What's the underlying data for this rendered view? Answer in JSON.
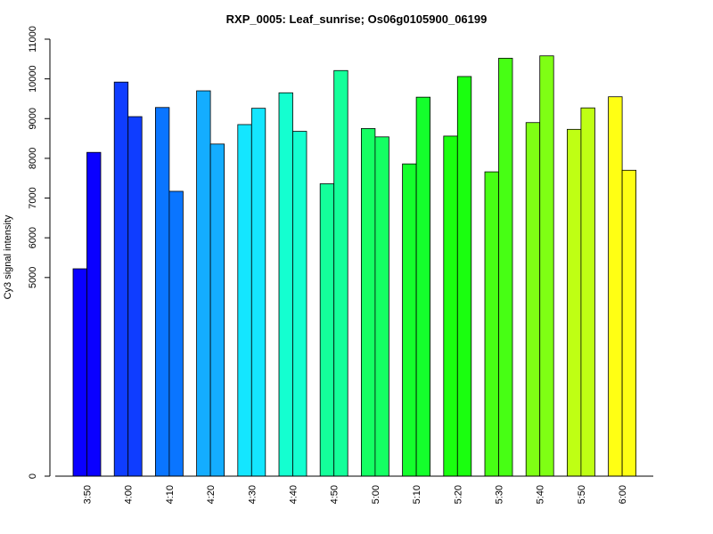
{
  "chart_data": {
    "type": "bar",
    "title": "RXP_0005: Leaf_sunrise; Os06g0105900_06199",
    "xlabel": "",
    "ylabel": "Cy3 signal intensity",
    "ylim": [
      0,
      11000
    ],
    "yticks": [
      0,
      5000,
      6000,
      7000,
      8000,
      9000,
      10000,
      11000
    ],
    "grid": false,
    "legend": "none",
    "categories": [
      "3:50",
      "4:00",
      "4:10",
      "4:20",
      "4:30",
      "4:40",
      "4:50",
      "5:00",
      "5:10",
      "5:20",
      "5:30",
      "5:40",
      "5:50",
      "6:00"
    ],
    "colors": [
      "#0A00FF",
      "#0F3DFF",
      "#0A75FF",
      "#14ADFF",
      "#14E6FF",
      "#14FFD0",
      "#14FF9A",
      "#14FF63",
      "#14FF2C",
      "#1AFF0F",
      "#47FF14",
      "#7FFF14",
      "#BFFF14",
      "#FFFF14"
    ],
    "series": [
      {
        "values": [
          5220,
          9920,
          9280,
          9700,
          8850,
          9650,
          7360,
          8750,
          7860,
          8560,
          7660,
          8900,
          8730,
          9550
        ]
      },
      {
        "values": [
          8150,
          9050,
          7170,
          8360,
          9260,
          8680,
          10210,
          8540,
          9540,
          10060,
          10520,
          10580,
          9270,
          7700
        ]
      }
    ]
  }
}
